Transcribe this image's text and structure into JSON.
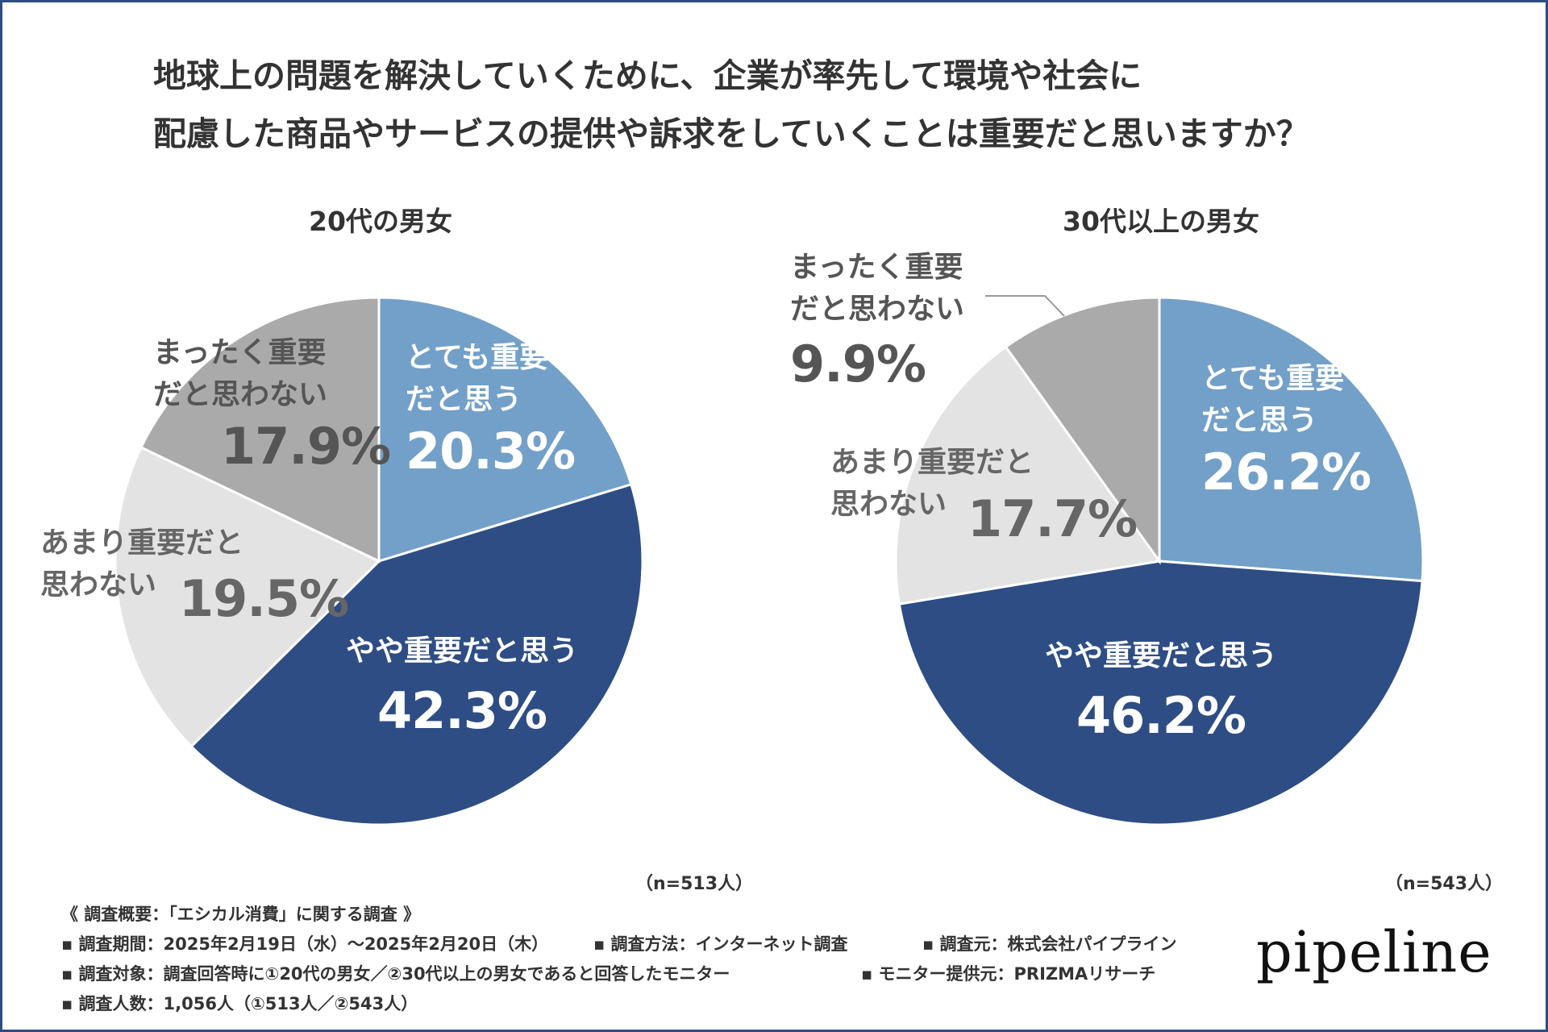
{
  "title": {
    "line1": "地球上の問題を解決していくために、企業が率先して環境や社会に",
    "line2": "配慮した商品やサービスの提供や訴求をしていくことは重要だと思いますか？"
  },
  "colors": {
    "very_important": "#73a0c8",
    "somewhat_important": "#2e4d84",
    "not_very_important": "#e3e3e3",
    "not_at_all_important": "#aaaaaa",
    "border": "#2e4d84"
  },
  "charts": [
    {
      "title": "20代の男女",
      "n": "（n=513人）",
      "labels": [
        {
          "text1": "とても重要",
          "text2": "だと思う",
          "pct": "20.3%"
        },
        {
          "text1": "やや重要だと思う",
          "pct": "42.3%"
        },
        {
          "text1": "あまり重要だと",
          "text2": "思わない",
          "pct": "19.5%"
        },
        {
          "text1": "まったく重要",
          "text2": "だと思わない",
          "pct": "17.9%"
        }
      ]
    },
    {
      "title": "30代以上の男女",
      "n": "（n=543人）",
      "labels": [
        {
          "text1": "とても重要",
          "text2": "だと思う",
          "pct": "26.2%"
        },
        {
          "text1": "やや重要だと思う",
          "pct": "46.2%"
        },
        {
          "text1": "あまり重要だと",
          "text2": "思わない",
          "pct": "17.7%"
        },
        {
          "text1": "まったく重要",
          "text2": "だと思わない",
          "pct": "9.9%"
        }
      ]
    }
  ],
  "chart_data": [
    {
      "type": "pie",
      "title": "20代の男女",
      "categories": [
        "とても重要だと思う",
        "やや重要だと思う",
        "あまり重要だと思わない",
        "まったく重要だと思わない"
      ],
      "values": [
        20.3,
        42.3,
        19.5,
        17.9
      ],
      "n": 513
    },
    {
      "type": "pie",
      "title": "30代以上の男女",
      "categories": [
        "とても重要だと思う",
        "やや重要だと思う",
        "あまり重要だと思わない",
        "まったく重要だと思わない"
      ],
      "values": [
        26.2,
        46.2,
        17.7,
        9.9
      ],
      "n": 543
    }
  ],
  "notes": {
    "heading": "《 調査概要：「エシカル消費」に関する調査 》",
    "period": "▪ 調査期間：2025年2月19日（水）～2025年2月20日（木）",
    "method": "▪ 調査方法：インターネット調査",
    "source": "▪ 調査元：株式会社パイプライン",
    "target": "▪ 調査対象：調査回答時に①20代の男女／②30代以上の男女であると回答したモニター",
    "provider": "▪ モニター提供元：PRIZMAリサーチ",
    "count": "▪ 調査人数：1,056人（①513人／②543人）"
  },
  "logo": "pipeline"
}
